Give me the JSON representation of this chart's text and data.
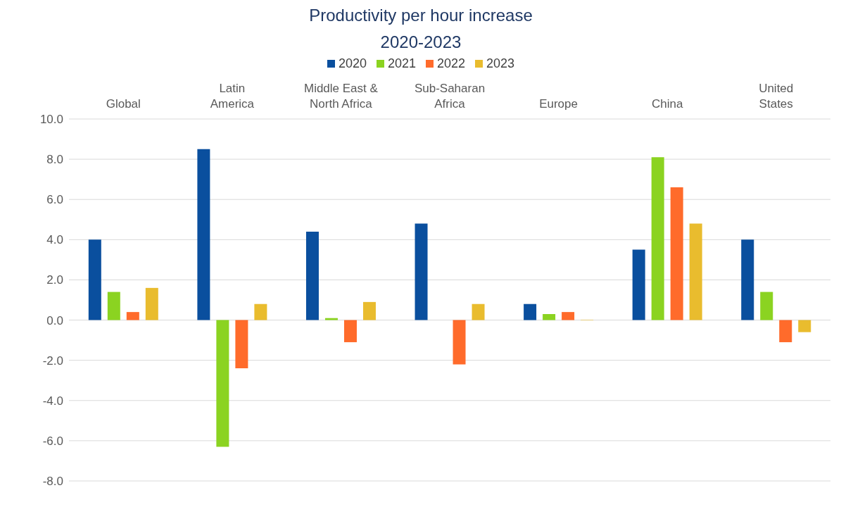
{
  "chart_data": {
    "type": "bar",
    "title": "Productivity per hour increase",
    "subtitle": "2020-2023",
    "categories": [
      "Global",
      "Latin\nAmerica",
      "Middle East &\nNorth Africa",
      "Sub-Saharan\nAfrica",
      "Europe",
      "China",
      "United\nStates"
    ],
    "series": [
      {
        "name": "2020",
        "color": "#0a4f9e",
        "values": [
          4.0,
          8.5,
          4.4,
          4.8,
          0.8,
          3.5,
          4.0
        ]
      },
      {
        "name": "2021",
        "color": "#8bd321",
        "values": [
          1.4,
          -6.3,
          0.1,
          null,
          0.3,
          8.1,
          1.4
        ]
      },
      {
        "name": "2022",
        "color": "#ff6b2b",
        "values": [
          0.4,
          -2.4,
          -1.1,
          -2.2,
          0.4,
          6.6,
          -1.1
        ]
      },
      {
        "name": "2023",
        "color": "#e9bc2e",
        "values": [
          1.6,
          0.8,
          0.9,
          0.8,
          0.02,
          4.8,
          -0.6
        ]
      }
    ],
    "ylim": [
      -8,
      10
    ],
    "yticks": [
      {
        "value": 10,
        "label": "10.0"
      },
      {
        "value": 8,
        "label": "8.0"
      },
      {
        "value": 6,
        "label": "6.0"
      },
      {
        "value": 4,
        "label": "4.0"
      },
      {
        "value": 2,
        "label": "2.0"
      },
      {
        "value": 0,
        "label": "0.0"
      },
      {
        "value": -2,
        "label": "-2.0"
      },
      {
        "value": -4,
        "label": "-4.0"
      },
      {
        "value": -6,
        "label": "-6.0"
      },
      {
        "value": -8,
        "label": "-8.0"
      }
    ],
    "grid": "y",
    "legend": "top"
  }
}
